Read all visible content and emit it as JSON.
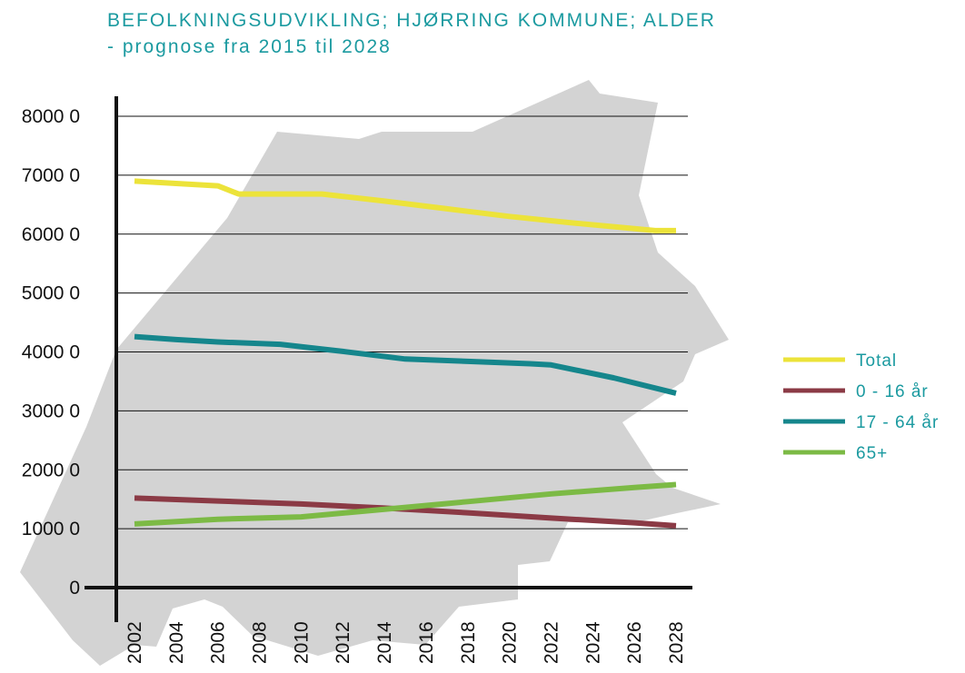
{
  "chart_data": {
    "type": "line",
    "title": "BEFOLKNINGSUDVIKLING; HJØRRING KOMMUNE; ALDER",
    "subtitle": "- prognose fra 2015 til 2028",
    "xlabel": "",
    "ylabel": "",
    "ylim": [
      0,
      8000
    ],
    "xlim": [
      2002,
      2028
    ],
    "grid": true,
    "legend_position": "right",
    "y_ticks": [
      "0",
      "1000 0",
      "2000 0",
      "3000 0",
      "4000 0",
      "5000 0",
      "6000 0",
      "7000 0",
      "8000 0"
    ],
    "x_ticks": [
      "2002",
      "2004",
      "2006",
      "2008",
      "2010",
      "2012",
      "2014",
      "2016",
      "2018",
      "2020",
      "2022",
      "2024",
      "2026",
      "2028"
    ],
    "series": [
      {
        "name": "Total",
        "color": "#ece33a",
        "x": [
          2002,
          2006,
          2007,
          2011,
          2014,
          2017,
          2020,
          2023,
          2027,
          2028
        ],
        "y": [
          6900,
          6820,
          6680,
          6680,
          6560,
          6430,
          6300,
          6190,
          6060,
          6060
        ]
      },
      {
        "name": "0 - 16 år",
        "color": "#8b3a45",
        "x": [
          2002,
          2006,
          2010,
          2014,
          2018,
          2022,
          2026,
          2028
        ],
        "y": [
          1520,
          1470,
          1420,
          1350,
          1270,
          1180,
          1100,
          1050
        ]
      },
      {
        "name": "17 - 64 år",
        "color": "#15868c",
        "x": [
          2002,
          2004,
          2006,
          2009,
          2012,
          2015,
          2018,
          2021,
          2022,
          2025,
          2028
        ],
        "y": [
          4260,
          4210,
          4170,
          4130,
          4010,
          3880,
          3840,
          3800,
          3780,
          3560,
          3300
        ]
      },
      {
        "name": "65+",
        "color": "#7cba45",
        "x": [
          2002,
          2006,
          2010,
          2014,
          2018,
          2022,
          2026,
          2028
        ],
        "y": [
          1080,
          1160,
          1200,
          1330,
          1460,
          1590,
          1700,
          1750
        ]
      }
    ]
  },
  "colors": {
    "map_fill": "#d3d3d3",
    "axis": "#111111",
    "grid": "#111111",
    "title": "#1b9aa0"
  }
}
